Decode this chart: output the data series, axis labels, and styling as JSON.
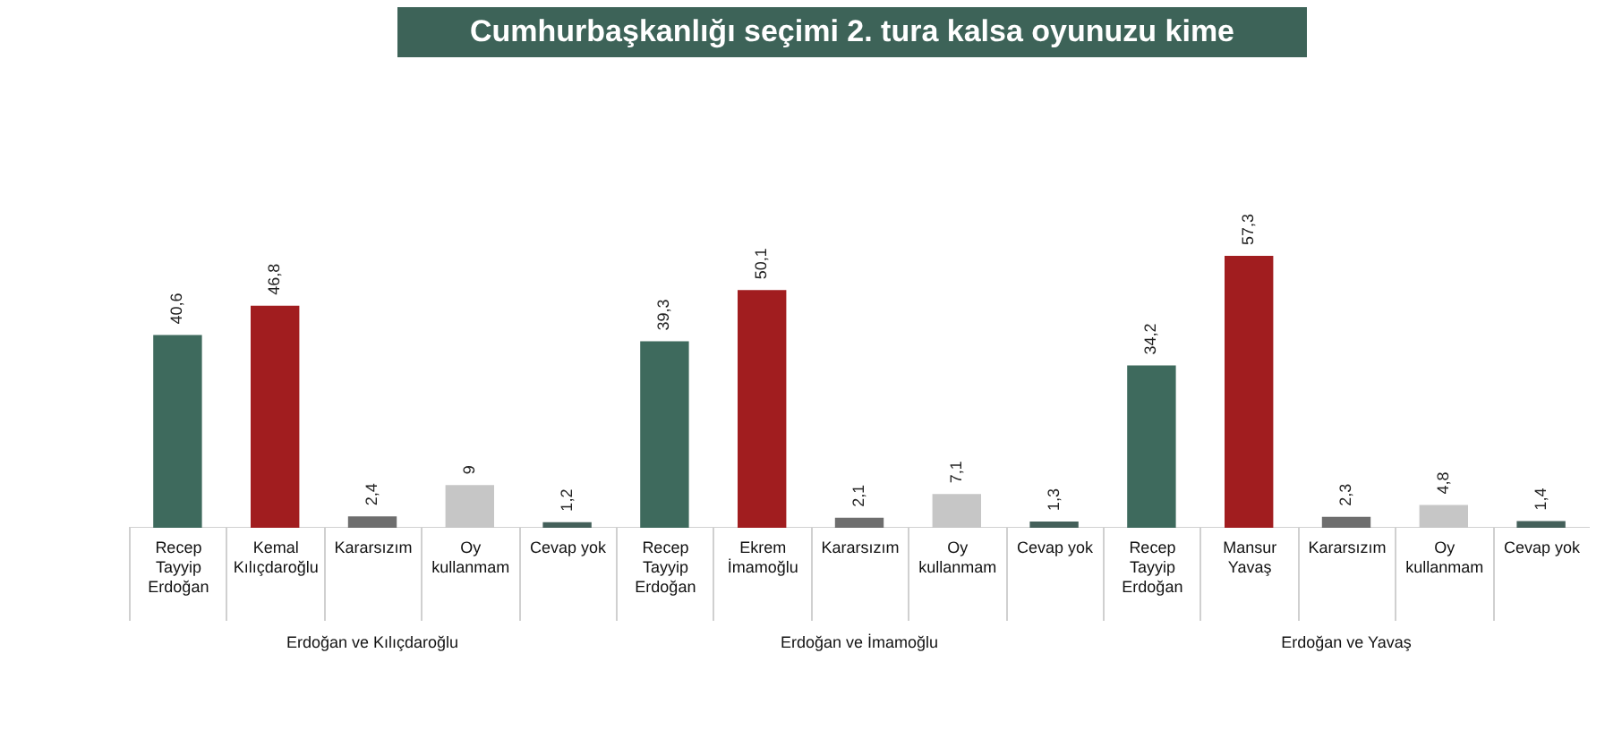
{
  "chart_data": [
    {
      "type": "bar",
      "title": "Cumhurbaşkanlığı seçimi 2. tura kalsa oyunuzu kime",
      "xlabel": "Erdoğan ve Kılıçdaroğlu",
      "categories": [
        "Recep Tayyip Erdoğan",
        "Kemal Kılıçdaroğlu",
        "Kararsızım",
        "Oy kullanmam",
        "Cevap yok"
      ],
      "values": [
        40.6,
        46.8,
        2.4,
        9,
        1.2
      ],
      "value_labels": [
        "40,6",
        "46,8",
        "2,4",
        "9",
        "1,2"
      ],
      "colors": [
        "#3e6a5d",
        "#a11d1f",
        "#6e6e6e",
        "#c6c6c6",
        "#44605a"
      ],
      "grid": false,
      "legend": false
    },
    {
      "type": "bar",
      "xlabel": "Erdoğan ve İmamoğlu",
      "categories": [
        "Recep Tayyip Erdoğan",
        "Ekrem İmamoğlu",
        "Kararsızım",
        "Oy kullanmam",
        "Cevap yok"
      ],
      "values": [
        39.3,
        50.1,
        2.1,
        7.1,
        1.3
      ],
      "value_labels": [
        "39,3",
        "50,1",
        "2,1",
        "7,1",
        "1,3"
      ],
      "colors": [
        "#3e6a5d",
        "#a11d1f",
        "#6e6e6e",
        "#c6c6c6",
        "#44605a"
      ],
      "grid": false,
      "legend": false
    },
    {
      "type": "bar",
      "xlabel": "Erdoğan ve Yavaş",
      "categories": [
        "Recep Tayyip Erdoğan",
        "Mansur Yavaş",
        "Kararsızım",
        "Oy kullanmam",
        "Cevap yok"
      ],
      "values": [
        34.2,
        57.3,
        2.3,
        4.8,
        1.4
      ],
      "value_labels": [
        "34,2",
        "57,3",
        "2,3",
        "4,8",
        "1,4"
      ],
      "colors": [
        "#3e6a5d",
        "#a11d1f",
        "#6e6e6e",
        "#c6c6c6",
        "#44605a"
      ],
      "grid": false,
      "legend": false
    }
  ]
}
